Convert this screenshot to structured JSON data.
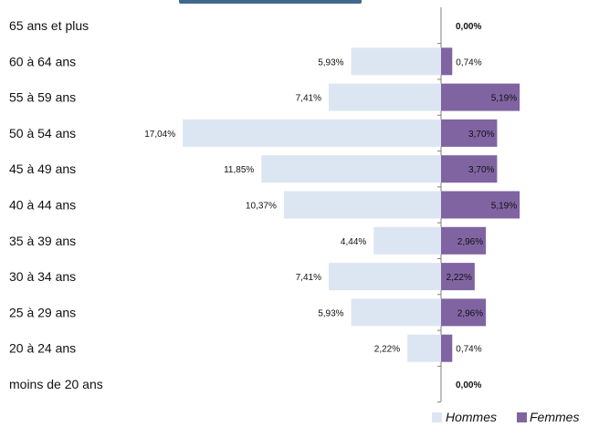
{
  "chart_data": {
    "type": "bar",
    "orientation": "horizontal-pyramid",
    "categories": [
      "65 ans et plus",
      "60 à 64 ans",
      "55 à 59 ans",
      "50 à 54 ans",
      "45 à 49 ans",
      "40 à 44 ans",
      "35 à 39 ans",
      "30 à 34 ans",
      "25 à 29 ans",
      "20 à 24 ans",
      "moins de 20 ans"
    ],
    "series": [
      {
        "name": "Hommes",
        "color": "#dce6f2",
        "values": [
          0,
          5.93,
          7.41,
          17.04,
          11.85,
          10.37,
          4.44,
          7.41,
          5.93,
          2.22,
          0
        ],
        "labels": [
          "",
          "5,93%",
          "7,41%",
          "17,04%",
          "11,85%",
          "10,37%",
          "4,44%",
          "7,41%",
          "5,93%",
          "2,22%",
          ""
        ]
      },
      {
        "name": "Femmes",
        "color": "#8064a2",
        "values": [
          0,
          0.74,
          5.19,
          3.7,
          3.7,
          5.19,
          2.96,
          2.22,
          2.96,
          0.74,
          0
        ],
        "labels": [
          "0,00%",
          "0,74%",
          "5,19%",
          "3,70%",
          "3,70%",
          "5,19%",
          "2,96%",
          "2,22%",
          "2,96%",
          "0,74%",
          "0,00%"
        ]
      }
    ],
    "legend_position": "bottom-right",
    "grid": false
  }
}
